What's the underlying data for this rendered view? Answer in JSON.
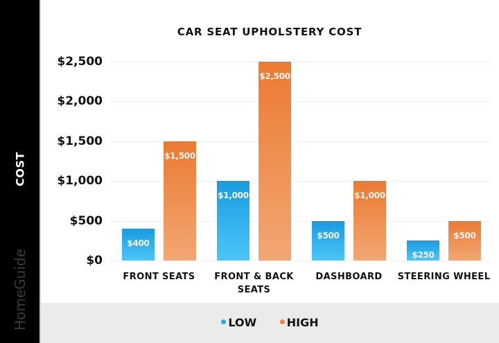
{
  "sidebar": {
    "axis_label": "COST",
    "brand": "HomeGuide"
  },
  "colors": {
    "low": "#29aae8",
    "high": "#ee8745",
    "sidebar": "#000000",
    "legend_band": "#ebebeb"
  },
  "chart_data": {
    "type": "bar",
    "title": "CAR SEAT UPHOLSTERY COST",
    "xlabel": "",
    "ylabel": "COST",
    "categories": [
      "FRONT SEATS",
      "FRONT & BACK SEATS",
      "DASHBOARD",
      "STEERING WHEEL"
    ],
    "series": [
      {
        "name": "LOW",
        "color": "#29aae8",
        "values": [
          400,
          1000,
          500,
          250
        ],
        "labels": [
          "$400",
          "$1,000",
          "$500",
          "$250"
        ]
      },
      {
        "name": "HIGH",
        "color": "#ee8745",
        "values": [
          1500,
          2500,
          1000,
          500
        ],
        "labels": [
          "$1,500",
          "$2,500",
          "$1,000",
          "$500"
        ]
      }
    ],
    "ylim": [
      0,
      2500
    ],
    "yticks": [
      "$0",
      "$500",
      "$1,000",
      "$1,500",
      "$2,000",
      "$2,500"
    ],
    "grid": true,
    "legend_position": "bottom"
  },
  "legend": {
    "low": "LOW",
    "high": "HIGH"
  }
}
